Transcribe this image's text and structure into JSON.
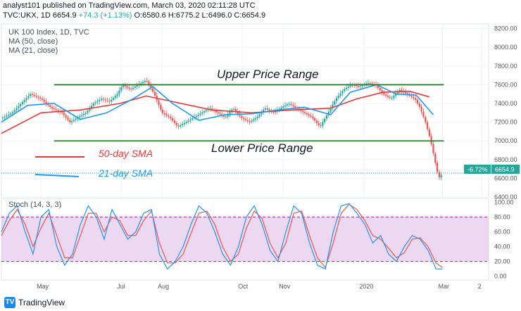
{
  "header": {
    "author_line": "analyst101 published on TradingView.com, March 03, 2020 02:11:28 UTC",
    "symbol": "TVC:UKX, 1D",
    "price": "6654.9",
    "change": "+74.3 (+1.13%)",
    "ohlc": "O:6580.6 H:6775.2 L:6496.0 C:6654.9"
  },
  "legend": {
    "title": "UK 100 Index, 1D, TVC",
    "ma50": "MA (50, close)",
    "ma21": "MA (21, close)",
    "stoch": "Stoch (14, 3, 3)"
  },
  "brand": {
    "name": "TradingView",
    "logo_text": "TV"
  },
  "colors": {
    "up": "#26a69a",
    "down": "#ef5350",
    "ma50": "#e53935",
    "ma21": "#2196f3",
    "range_line": "#2e7d32",
    "stoch_k": "#2196f3",
    "stoch_d": "#ef5350",
    "stoch_band": "#e1bee7",
    "stoch_bound": "#9c27b0"
  },
  "chart_data": [
    {
      "type": "candlestick",
      "title": "UK 100 Index, 1D, TVC",
      "y_ticks": [
        "6400.00",
        "6600.00",
        "6800.00",
        "7000.00",
        "7200.00",
        "7400.00",
        "7600.00",
        "7800.00",
        "8000.00",
        "8200.00"
      ],
      "ylim": [
        6400,
        8250
      ],
      "x_ticks": [
        "May",
        "Jul",
        "Aug",
        "Oct",
        "Nov",
        "2020",
        "Mar",
        "2"
      ],
      "x_tick_days": [
        30,
        91,
        122,
        183,
        214,
        275,
        335,
        365
      ],
      "x_range_days": [
        0,
        370
      ],
      "last_price": "6654.9",
      "last_change": "-6.72%",
      "annotations": {
        "upper_label": "Upper Price Range",
        "lower_label": "Lower Price Range",
        "ma50_label": "50-day SMA",
        "ma21_label": "21-day SMA"
      },
      "upper_range": {
        "level": 7600,
        "from_day": 40,
        "to_day": 336
      },
      "lower_range": {
        "level": 7000,
        "from_day": 40,
        "to_day": 336
      },
      "close_points": [
        [
          0,
          7240
        ],
        [
          8,
          7300
        ],
        [
          15,
          7400
        ],
        [
          22,
          7500
        ],
        [
          30,
          7450
        ],
        [
          38,
          7350
        ],
        [
          46,
          7300
        ],
        [
          52,
          7200
        ],
        [
          58,
          7250
        ],
        [
          64,
          7300
        ],
        [
          70,
          7400
        ],
        [
          76,
          7450
        ],
        [
          82,
          7420
        ],
        [
          88,
          7500
        ],
        [
          92,
          7600
        ],
        [
          98,
          7550
        ],
        [
          104,
          7600
        ],
        [
          110,
          7650
        ],
        [
          116,
          7500
        ],
        [
          122,
          7300
        ],
        [
          128,
          7250
        ],
        [
          134,
          7150
        ],
        [
          140,
          7200
        ],
        [
          146,
          7250
        ],
        [
          152,
          7300
        ],
        [
          158,
          7350
        ],
        [
          164,
          7300
        ],
        [
          170,
          7250
        ],
        [
          176,
          7350
        ],
        [
          182,
          7250
        ],
        [
          188,
          7200
        ],
        [
          194,
          7250
        ],
        [
          200,
          7350
        ],
        [
          206,
          7300
        ],
        [
          212,
          7350
        ],
        [
          218,
          7400
        ],
        [
          224,
          7350
        ],
        [
          230,
          7300
        ],
        [
          236,
          7250
        ],
        [
          242,
          7150
        ],
        [
          248,
          7300
        ],
        [
          254,
          7450
        ],
        [
          260,
          7550
        ],
        [
          266,
          7600
        ],
        [
          272,
          7580
        ],
        [
          278,
          7620
        ],
        [
          284,
          7600
        ],
        [
          290,
          7500
        ],
        [
          296,
          7450
        ],
        [
          302,
          7550
        ],
        [
          308,
          7500
        ],
        [
          314,
          7450
        ],
        [
          318,
          7350
        ],
        [
          322,
          7200
        ],
        [
          326,
          7000
        ],
        [
          329,
          6800
        ],
        [
          332,
          6600
        ],
        [
          335,
          6654.9
        ]
      ],
      "ma50_points": [
        [
          0,
          7080
        ],
        [
          30,
          7300
        ],
        [
          60,
          7330
        ],
        [
          90,
          7400
        ],
        [
          110,
          7480
        ],
        [
          130,
          7420
        ],
        [
          160,
          7330
        ],
        [
          190,
          7300
        ],
        [
          220,
          7330
        ],
        [
          250,
          7350
        ],
        [
          270,
          7450
        ],
        [
          290,
          7520
        ],
        [
          310,
          7530
        ],
        [
          325,
          7470
        ]
      ],
      "ma21_points": [
        [
          0,
          7200
        ],
        [
          20,
          7380
        ],
        [
          40,
          7400
        ],
        [
          60,
          7230
        ],
        [
          80,
          7300
        ],
        [
          100,
          7450
        ],
        [
          115,
          7580
        ],
        [
          130,
          7400
        ],
        [
          150,
          7220
        ],
        [
          170,
          7280
        ],
        [
          190,
          7290
        ],
        [
          210,
          7330
        ],
        [
          230,
          7360
        ],
        [
          250,
          7280
        ],
        [
          265,
          7520
        ],
        [
          285,
          7600
        ],
        [
          300,
          7500
        ],
        [
          315,
          7490
        ],
        [
          328,
          7280
        ]
      ]
    },
    {
      "type": "line",
      "title": "Stoch (14, 3, 3)",
      "y_ticks": [
        "0.00",
        "20.00",
        "40.00",
        "60.00",
        "80.00",
        "100.00"
      ],
      "ylim": [
        -5,
        105
      ],
      "bands": [
        20,
        80
      ],
      "series": [
        {
          "points": [
            [
              0,
              60
            ],
            [
              6,
              85
            ],
            [
              12,
              95
            ],
            [
              18,
              60
            ],
            [
              24,
              30
            ],
            [
              30,
              80
            ],
            [
              36,
              90
            ],
            [
              42,
              40
            ],
            [
              48,
              15
            ],
            [
              54,
              30
            ],
            [
              60,
              70
            ],
            [
              66,
              95
            ],
            [
              72,
              80
            ],
            [
              78,
              50
            ],
            [
              84,
              90
            ],
            [
              90,
              70
            ],
            [
              96,
              50
            ],
            [
              102,
              60
            ],
            [
              108,
              85
            ],
            [
              114,
              90
            ],
            [
              120,
              30
            ],
            [
              126,
              10
            ],
            [
              132,
              20
            ],
            [
              138,
              40
            ],
            [
              144,
              70
            ],
            [
              150,
              95
            ],
            [
              156,
              85
            ],
            [
              162,
              60
            ],
            [
              168,
              30
            ],
            [
              174,
              15
            ],
            [
              180,
              40
            ],
            [
              186,
              80
            ],
            [
              192,
              95
            ],
            [
              198,
              70
            ],
            [
              204,
              35
            ],
            [
              210,
              20
            ],
            [
              216,
              60
            ],
            [
              222,
              95
            ],
            [
              228,
              85
            ],
            [
              234,
              45
            ],
            [
              240,
              15
            ],
            [
              246,
              10
            ],
            [
              252,
              60
            ],
            [
              258,
              95
            ],
            [
              264,
              98
            ],
            [
              270,
              85
            ],
            [
              276,
              70
            ],
            [
              282,
              45
            ],
            [
              288,
              55
            ],
            [
              294,
              30
            ],
            [
              300,
              20
            ],
            [
              306,
              40
            ],
            [
              312,
              55
            ],
            [
              318,
              50
            ],
            [
              324,
              35
            ],
            [
              330,
              10
            ],
            [
              335,
              10
            ]
          ]
        },
        {
          "points": [
            [
              0,
              55
            ],
            [
              6,
              75
            ],
            [
              12,
              90
            ],
            [
              18,
              70
            ],
            [
              24,
              40
            ],
            [
              30,
              65
            ],
            [
              36,
              85
            ],
            [
              42,
              55
            ],
            [
              48,
              25
            ],
            [
              54,
              25
            ],
            [
              60,
              55
            ],
            [
              66,
              85
            ],
            [
              72,
              85
            ],
            [
              78,
              60
            ],
            [
              84,
              80
            ],
            [
              90,
              75
            ],
            [
              96,
              55
            ],
            [
              102,
              55
            ],
            [
              108,
              75
            ],
            [
              114,
              88
            ],
            [
              120,
              45
            ],
            [
              126,
              18
            ],
            [
              132,
              18
            ],
            [
              138,
              30
            ],
            [
              144,
              58
            ],
            [
              150,
              85
            ],
            [
              156,
              88
            ],
            [
              162,
              70
            ],
            [
              168,
              40
            ],
            [
              174,
              20
            ],
            [
              180,
              30
            ],
            [
              186,
              65
            ],
            [
              192,
              88
            ],
            [
              198,
              78
            ],
            [
              204,
              45
            ],
            [
              210,
              25
            ],
            [
              216,
              45
            ],
            [
              222,
              85
            ],
            [
              228,
              88
            ],
            [
              234,
              55
            ],
            [
              240,
              25
            ],
            [
              246,
              12
            ],
            [
              252,
              45
            ],
            [
              258,
              85
            ],
            [
              264,
              97
            ],
            [
              270,
              90
            ],
            [
              276,
              75
            ],
            [
              282,
              55
            ],
            [
              288,
              50
            ],
            [
              294,
              38
            ],
            [
              300,
              25
            ],
            [
              306,
              32
            ],
            [
              312,
              50
            ],
            [
              318,
              52
            ],
            [
              324,
              40
            ],
            [
              330,
              18
            ],
            [
              335,
              12
            ]
          ]
        }
      ]
    }
  ]
}
